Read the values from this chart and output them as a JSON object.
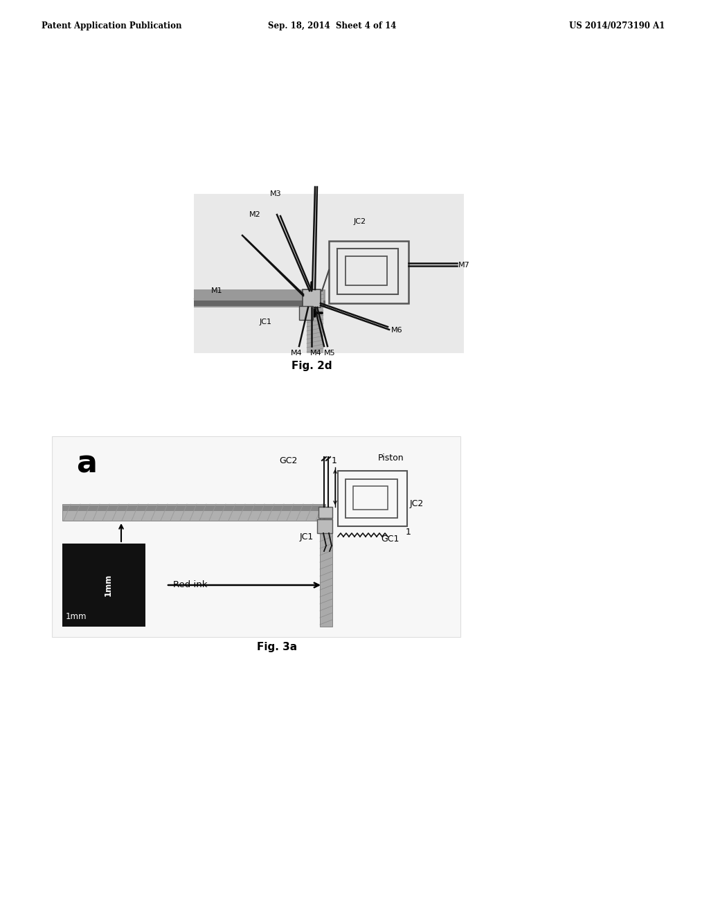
{
  "bg_color": "#ffffff",
  "header_left": "Patent Application Publication",
  "header_center": "Sep. 18, 2014  Sheet 4 of 14",
  "header_right": "US 2014/0273190 A1",
  "fig2d_caption": "Fig. 2d",
  "fig3a_caption": "Fig. 3a",
  "page_width": 10.24,
  "page_height": 13.2
}
